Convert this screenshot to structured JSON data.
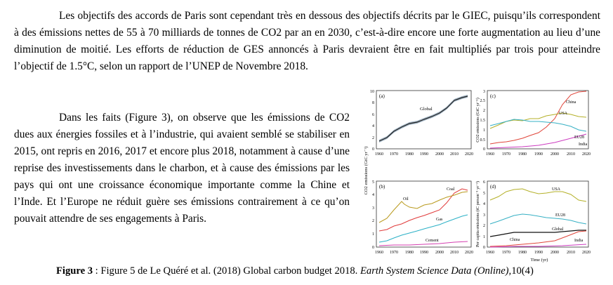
{
  "paragraph1": "Les objectifs des accords de Paris sont cependant très en dessous des objectifs décrits par le GIEC, puisqu’ils correspondent à des émissions nettes de 55 à 70 milliards de tonnes de CO2 par an en 2030, c’est-à-dire encore une forte augmentation au lieu d’une diminution de moitié. Les efforts de réduction de GES annoncés à Paris devraient être en fait multipliés par trois pour atteindre l’objectif de 1.5°C, selon un rapport de l’UNEP de Novembre 2018.",
  "paragraph2": "Dans les faits (Figure 3), on observe que les émissions de CO2 dues aux énergies fossiles et à l’industrie, qui avaient semblé se stabiliser en 2015, ont repris en 2016, 2017 et encore plus 2018, notamment à cause d’une reprise des investissements dans le charbon, et à cause des émissions par les pays qui ont une croissance économique importante comme la Chine et l’Inde. Et l’Europe ne réduit guère ses émissions contrairement à ce qu’on pouvait attendre de ses engagements à Paris.",
  "caption": {
    "label": "Figure 3",
    "text1": " : Figure 5 de Le Quéré et al. (2018) Global carbon budget 2018. ",
    "journal": "Earth System Science Data (Online),",
    "text2": "10(4)"
  },
  "figure": {
    "ylabel_left": "CO2 emissions (GtC yr⁻¹)",
    "ylabel_right_top": "CO2 emissions (GtC yr⁻¹)",
    "ylabel_right_bottom": "Per capita emissions (tC person⁻¹ yr⁻¹)",
    "xlabel": "Time (yr)",
    "x_ticks": [
      "1960",
      "1970",
      "1980",
      "1990",
      "2000",
      "2010",
      "2020"
    ],
    "panel_a": {
      "letter": "(a)",
      "y_ticks": [
        "0",
        "2",
        "4",
        "6",
        "8",
        "10"
      ],
      "label_global": "Global"
    },
    "panel_b": {
      "letter": "(b)",
      "y_ticks": [
        "0",
        "1",
        "2",
        "3",
        "4",
        "5"
      ],
      "labels": {
        "coal": "Coal",
        "oil": "Oil",
        "gas": "Gas",
        "cement": "Cement"
      }
    },
    "panel_c": {
      "letter": "(c)",
      "y_ticks": [
        "0",
        "0.5",
        "1",
        "1.5",
        "2",
        "2.5",
        "3"
      ],
      "labels": {
        "china": "China",
        "usa": "USA",
        "eu28": "EU28",
        "india": "India"
      }
    },
    "panel_d": {
      "letter": "(d)",
      "y_ticks": [
        "0",
        "1",
        "2",
        "3",
        "4",
        "5",
        "6"
      ],
      "labels": {
        "usa": "USA",
        "eu28": "EU28",
        "global": "Global",
        "china": "China",
        "india": "India"
      }
    },
    "colors": {
      "global": "#222222",
      "band": "#8fa6b8",
      "coal": "#e03a3a",
      "oil": "#b99a1e",
      "gas": "#2ab0c6",
      "cement": "#d43fb0",
      "china": "#e0453a",
      "usa": "#b4b028",
      "eu28": "#36b0c4",
      "india": "#cc3cc0",
      "global_d": "#111111"
    }
  }
}
